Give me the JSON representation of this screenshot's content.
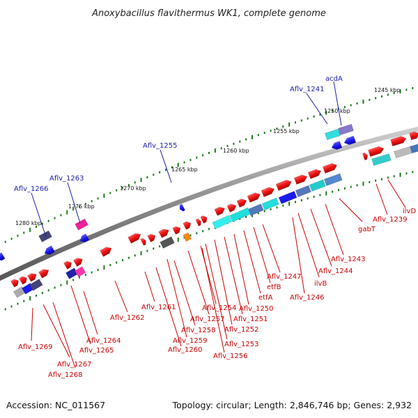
{
  "title": "Anoxybacillus flavithermus WK1, complete genome",
  "footer": {
    "accession": "Accession: NC_011567",
    "summary": "Topology: circular; Length: 2,846,746 bp; Genes: 2,932"
  },
  "colors": {
    "forward_gene": "#ee1111",
    "reverse_gene": "#1a1aee",
    "ruler_dots": "#1a7a1a",
    "backbone": "#888888",
    "label_forward": "#cc0000",
    "label_reverse": "#1a1aa8"
  },
  "ruler": {
    "ticks": [
      "1245 kbp",
      "1250 kbp",
      "1255 kbp",
      "1260 kbp",
      "1265 kbp",
      "1270 kbp",
      "1275 kbp",
      "1280 kbp"
    ]
  },
  "labels": {
    "reverse": [
      "acdA",
      "Aflv_1241",
      "Aflv_1255",
      "Aflv_1263",
      "Aflv_1266"
    ],
    "forward": [
      "ilvD",
      "Aflv_1239",
      "gabT",
      "Aflv_1243",
      "Aflv_1244",
      "ilvB",
      "Aflv_1246",
      "Aflv_1247",
      "etfB",
      "etfA",
      "Aflv_1250",
      "Aflv_1251",
      "Aflv_1252",
      "Aflv_1253",
      "Aflv_1254",
      "Aflv_1256",
      "Aflv_1257",
      "Aflv_1258",
      "Aflv_1259",
      "Aflv_1260",
      "Aflv_1261",
      "Aflv_1262",
      "Aflv_1264",
      "Aflv_1265",
      "Aflv_1267",
      "Aflv_1268",
      "Aflv_1269"
    ]
  }
}
